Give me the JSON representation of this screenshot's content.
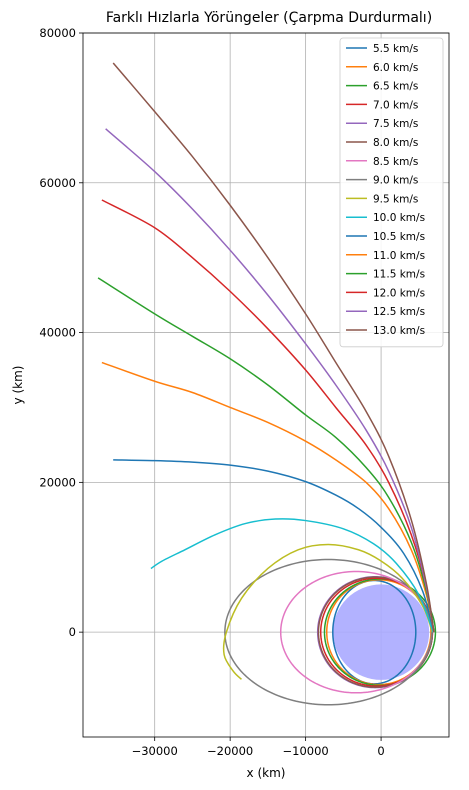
{
  "chart_data": {
    "type": "line",
    "title": "Farklı Hızlarla Yörüngeler (Çarpma Durdurmalı)",
    "xlabel": "x (km)",
    "ylabel": "y (km)",
    "xlim": [
      -39500,
      9000
    ],
    "ylim": [
      -14000,
      80000
    ],
    "xticks": [
      -30000,
      -20000,
      -10000,
      0
    ],
    "xtick_labels": [
      "−30000",
      "−20000",
      "−10000",
      "0"
    ],
    "yticks": [
      0,
      20000,
      40000,
      60000,
      80000
    ],
    "ytick_labels": [
      "0",
      "20000",
      "40000",
      "60000",
      "80000"
    ],
    "grid": true,
    "legend_position": "top-right",
    "earth": {
      "center": [
        0,
        0
      ],
      "radius": 6371,
      "color": "#aaaaff"
    },
    "series": [
      {
        "name": "5.5 km/s",
        "color": "#1f77b4",
        "kind": "ellipse",
        "params": {
          "a": 5500,
          "b": 6900,
          "cx": -900,
          "cy": 0
        }
      },
      {
        "name": "6.0 km/s",
        "color": "#ff7f0e",
        "kind": "ellipse",
        "params": {
          "a": 6900,
          "b": 7000,
          "cx": -300,
          "cy": 0
        }
      },
      {
        "name": "6.5 km/s",
        "color": "#2ca02c",
        "kind": "ellipse",
        "params": {
          "a": 7350,
          "b": 7100,
          "cx": -150,
          "cy": 0
        }
      },
      {
        "name": "7.0 km/s",
        "color": "#d62728",
        "kind": "ellipse",
        "params": {
          "a": 7400,
          "b": 7200,
          "cx": -600,
          "cy": 0
        }
      },
      {
        "name": "7.5 km/s",
        "color": "#9467bd",
        "kind": "ellipse",
        "params": {
          "a": 7600,
          "b": 7400,
          "cx": -800,
          "cy": 0
        }
      },
      {
        "name": "8.0 km/s",
        "color": "#8c564b",
        "kind": "ellipse",
        "params": {
          "a": 7550,
          "b": 7350,
          "cx": -750,
          "cy": 0
        }
      },
      {
        "name": "8.5 km/s",
        "color": "#e377c2",
        "kind": "ellipse",
        "params": {
          "a": 10000,
          "b": 8100,
          "cx": -3300,
          "cy": 0
        }
      },
      {
        "name": "9.0 km/s",
        "color": "#7f7f7f",
        "kind": "ellipse",
        "params": {
          "a": 13700,
          "b": 9700,
          "cx": -7000,
          "cy": 0
        }
      },
      {
        "name": "9.5 km/s",
        "color": "#bcbd22",
        "kind": "points",
        "x": [
          6800,
          5500,
          2800,
          0,
          -3000,
          -7000,
          -11000,
          -15000,
          -18500,
          -20500,
          -20800,
          -19600,
          -18500
        ],
        "y": [
          0,
          3500,
          7200,
          9500,
          11000,
          11700,
          11000,
          8500,
          4500,
          0,
          -3000,
          -5200,
          -6300
        ]
      },
      {
        "name": "10.0 km/s",
        "color": "#17becf",
        "kind": "points",
        "x": [
          6900,
          5000,
          2000,
          -1000,
          -5000,
          -10000,
          -14000,
          -18000,
          -22000,
          -26000,
          -29000,
          -30500
        ],
        "y": [
          0,
          5000,
          9200,
          11800,
          13800,
          14900,
          15100,
          14500,
          13000,
          11000,
          9500,
          8500
        ]
      },
      {
        "name": "10.5 km/s",
        "color": "#1f77b4",
        "kind": "points",
        "x": [
          7000,
          5500,
          3000,
          0,
          -3000,
          -6000,
          -10000,
          -15000,
          -20000,
          -25000,
          -30000,
          -35500
        ],
        "y": [
          0,
          5500,
          10500,
          14000,
          16500,
          18300,
          20100,
          21500,
          22300,
          22700,
          22900,
          23000
        ]
      },
      {
        "name": "11.0 km/s",
        "color": "#ff7f0e",
        "kind": "points",
        "x": [
          7000,
          6000,
          4000,
          1000,
          -2000,
          -6000,
          -10000,
          -15000,
          -20000,
          -25000,
          -30000,
          -37000
        ],
        "y": [
          0,
          5000,
          11000,
          16500,
          20000,
          23000,
          25500,
          28000,
          30000,
          32000,
          33500,
          36000
        ]
      },
      {
        "name": "11.5 km/s",
        "color": "#2ca02c",
        "kind": "points",
        "x": [
          7000,
          6000,
          4000,
          1000,
          -2000,
          -6000,
          -10000,
          -15000,
          -20000,
          -25000,
          -30000,
          -37500
        ],
        "y": [
          0,
          5500,
          12000,
          18000,
          22000,
          26000,
          29000,
          33000,
          36500,
          39500,
          42500,
          47300
        ]
      },
      {
        "name": "12.0 km/s",
        "color": "#d62728",
        "kind": "points",
        "x": [
          7000,
          6000,
          4000,
          1000,
          -2000,
          -6000,
          -10000,
          -15000,
          -20000,
          -25000,
          -30000,
          -37000
        ],
        "y": [
          0,
          6000,
          13000,
          20000,
          25000,
          30000,
          35000,
          40500,
          45500,
          50000,
          54000,
          57700
        ]
      },
      {
        "name": "12.5 km/s",
        "color": "#9467bd",
        "kind": "points",
        "x": [
          7000,
          6000,
          4000,
          1000,
          -2000,
          -6000,
          -10000,
          -15000,
          -20000,
          -25000,
          -30000,
          -36500
        ],
        "y": [
          0,
          6000,
          14000,
          21500,
          27000,
          33000,
          38500,
          45000,
          51000,
          56500,
          61500,
          67200
        ]
      },
      {
        "name": "13.0 km/s",
        "color": "#8c564b",
        "kind": "points",
        "x": [
          7000,
          6000,
          4000,
          1000,
          -2000,
          -6000,
          -10000,
          -15000,
          -20000,
          -25000,
          -30000,
          -35500
        ],
        "y": [
          0,
          6500,
          15000,
          23500,
          29500,
          36000,
          42500,
          50000,
          57000,
          63500,
          69500,
          76000
        ]
      }
    ]
  }
}
